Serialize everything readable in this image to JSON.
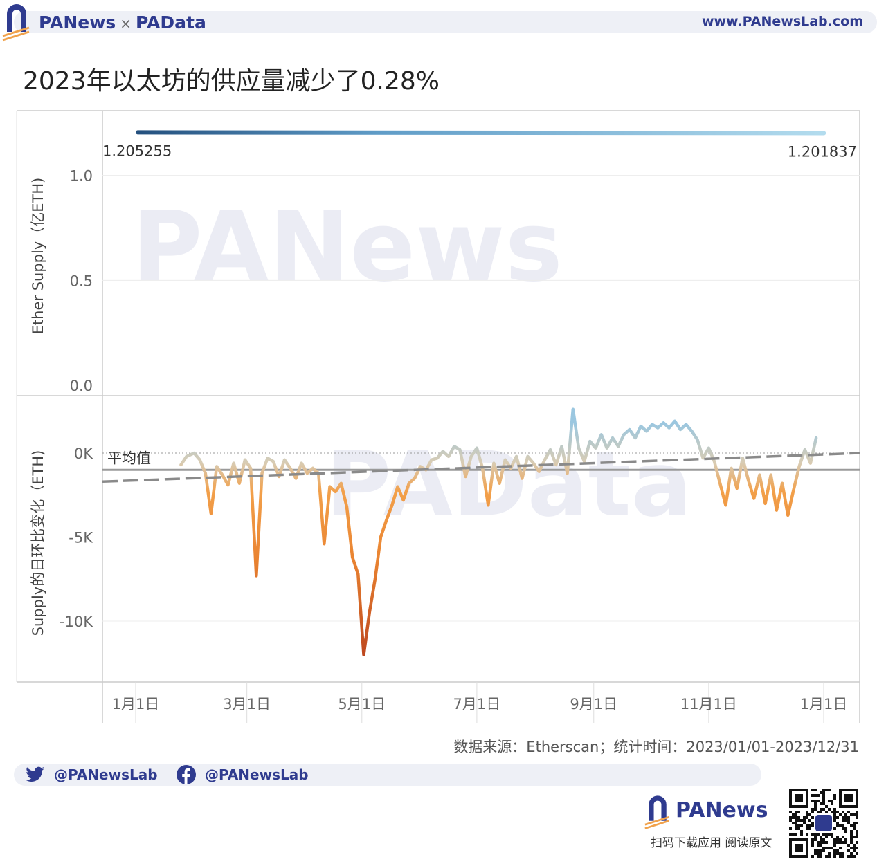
{
  "header": {
    "brand_left": "PANews",
    "brand_sep": "×",
    "brand_right": "PAData",
    "site": "www.PANewsLab.com"
  },
  "title": "2023年以太坊的供应量减少了0.28%",
  "colors": {
    "brand_blue": "#2f3b8f",
    "brand_orange": "#f0a14a",
    "gradient_dark": "#24507e",
    "gradient_light": "#b3dcee",
    "line_neg_strong": "#c0451d",
    "line_neg": "#f2a04a",
    "line_pos": "#9bc7e0"
  },
  "chart_data": [
    {
      "type": "line",
      "ylabel": "Ether Supply（亿ETH)",
      "ylim": [
        0,
        1.2
      ],
      "yticks": [
        "1.0",
        "0.5",
        "0.0"
      ],
      "start_label": "1.205255",
      "end_label": "1.201837",
      "x": [
        "2023-01-01",
        "2023-12-31"
      ],
      "values": [
        1.205255,
        1.201837
      ],
      "grid": true
    },
    {
      "type": "line",
      "ylabel": "Supply的日环比变化（ETH)",
      "ylim": [
        -13000,
        4000
      ],
      "yticks": [
        "0K",
        "-5K",
        "-10K"
      ],
      "xticks": [
        "1月1日",
        "3月1日",
        "5月1日",
        "7月1日",
        "9月1日",
        "11月1日",
        "1月1日"
      ],
      "average_label": "平均值",
      "average": -1000,
      "trend_start": -1700,
      "trend_end": 0,
      "series": [
        {
          "points": [
            [
              "2023-01-25",
              -700
            ],
            [
              "2023-01-28",
              -200
            ],
            [
              "2023-02-01",
              0
            ],
            [
              "2023-02-04",
              -400
            ],
            [
              "2023-02-07",
              -1200
            ],
            [
              "2023-02-10",
              -3600
            ],
            [
              "2023-02-13",
              -800
            ],
            [
              "2023-02-16",
              -1300
            ],
            [
              "2023-02-19",
              -1900
            ],
            [
              "2023-02-22",
              -600
            ],
            [
              "2023-02-25",
              -1800
            ],
            [
              "2023-02-28",
              -400
            ],
            [
              "2023-03-03",
              -900
            ],
            [
              "2023-03-06",
              -7300
            ],
            [
              "2023-03-09",
              -1200
            ],
            [
              "2023-03-12",
              -300
            ],
            [
              "2023-03-15",
              -500
            ],
            [
              "2023-03-18",
              -1400
            ],
            [
              "2023-03-21",
              -400
            ],
            [
              "2023-03-24",
              -900
            ],
            [
              "2023-03-27",
              -1500
            ],
            [
              "2023-03-30",
              -600
            ],
            [
              "2023-04-02",
              -1200
            ],
            [
              "2023-04-05",
              -900
            ],
            [
              "2023-04-08",
              -1200
            ],
            [
              "2023-04-11",
              -5400
            ],
            [
              "2023-04-14",
              -2000
            ],
            [
              "2023-04-17",
              -2300
            ],
            [
              "2023-04-20",
              -1800
            ],
            [
              "2023-04-23",
              -3200
            ],
            [
              "2023-04-26",
              -6200
            ],
            [
              "2023-04-29",
              -7200
            ],
            [
              "2023-05-02",
              -12000
            ],
            [
              "2023-05-05",
              -9500
            ],
            [
              "2023-05-08",
              -7500
            ],
            [
              "2023-05-11",
              -5000
            ],
            [
              "2023-05-14",
              -4000
            ],
            [
              "2023-05-17",
              -3100
            ],
            [
              "2023-05-20",
              -2000
            ],
            [
              "2023-05-23",
              -2800
            ],
            [
              "2023-05-26",
              -1800
            ],
            [
              "2023-05-29",
              -1500
            ],
            [
              "2023-06-01",
              -800
            ],
            [
              "2023-06-04",
              -1000
            ],
            [
              "2023-06-07",
              -400
            ],
            [
              "2023-06-10",
              -300
            ],
            [
              "2023-06-13",
              100
            ],
            [
              "2023-06-16",
              -200
            ],
            [
              "2023-06-19",
              400
            ],
            [
              "2023-06-22",
              200
            ],
            [
              "2023-06-25",
              -1400
            ],
            [
              "2023-06-28",
              -200
            ],
            [
              "2023-07-01",
              300
            ],
            [
              "2023-07-04",
              -900
            ],
            [
              "2023-07-07",
              -3100
            ],
            [
              "2023-07-10",
              -600
            ],
            [
              "2023-07-13",
              -1800
            ],
            [
              "2023-07-16",
              -400
            ],
            [
              "2023-07-19",
              -900
            ],
            [
              "2023-07-22",
              -200
            ],
            [
              "2023-07-25",
              -1500
            ],
            [
              "2023-07-28",
              -200
            ],
            [
              "2023-07-31",
              -600
            ],
            [
              "2023-08-03",
              -1100
            ],
            [
              "2023-08-06",
              -400
            ],
            [
              "2023-08-09",
              200
            ],
            [
              "2023-08-12",
              -700
            ],
            [
              "2023-08-15",
              400
            ],
            [
              "2023-08-18",
              -1200
            ],
            [
              "2023-08-21",
              2600
            ],
            [
              "2023-08-24",
              300
            ],
            [
              "2023-08-27",
              -500
            ],
            [
              "2023-08-30",
              700
            ],
            [
              "2023-09-02",
              300
            ],
            [
              "2023-09-05",
              1100
            ],
            [
              "2023-09-08",
              300
            ],
            [
              "2023-09-11",
              900
            ],
            [
              "2023-09-14",
              400
            ],
            [
              "2023-09-17",
              1100
            ],
            [
              "2023-09-20",
              1400
            ],
            [
              "2023-09-23",
              900
            ],
            [
              "2023-09-26",
              1600
            ],
            [
              "2023-09-29",
              1300
            ],
            [
              "2023-10-02",
              1700
            ],
            [
              "2023-10-05",
              1500
            ],
            [
              "2023-10-08",
              1800
            ],
            [
              "2023-10-11",
              1500
            ],
            [
              "2023-10-14",
              1900
            ],
            [
              "2023-10-17",
              1400
            ],
            [
              "2023-10-20",
              1700
            ],
            [
              "2023-10-23",
              1300
            ],
            [
              "2023-10-26",
              800
            ],
            [
              "2023-10-29",
              -300
            ],
            [
              "2023-11-01",
              300
            ],
            [
              "2023-11-04",
              -500
            ],
            [
              "2023-11-07",
              -1800
            ],
            [
              "2023-11-10",
              -3100
            ],
            [
              "2023-11-13",
              -900
            ],
            [
              "2023-11-16",
              -2100
            ],
            [
              "2023-11-19",
              -300
            ],
            [
              "2023-11-22",
              -1600
            ],
            [
              "2023-11-25",
              -2700
            ],
            [
              "2023-11-28",
              -1300
            ],
            [
              "2023-12-01",
              -3000
            ],
            [
              "2023-12-04",
              -1300
            ],
            [
              "2023-12-07",
              -3400
            ],
            [
              "2023-12-10",
              -1800
            ],
            [
              "2023-12-13",
              -3700
            ],
            [
              "2023-12-16",
              -2200
            ],
            [
              "2023-12-19",
              -800
            ],
            [
              "2023-12-22",
              200
            ],
            [
              "2023-12-25",
              -600
            ],
            [
              "2023-12-28",
              900
            ]
          ]
        }
      ],
      "grid": true
    }
  ],
  "source": "数据来源：Etherscan；统计时间：2023/01/01-2023/12/31",
  "social": {
    "twitter": "@PANewsLab",
    "facebook": "@PANewsLab"
  },
  "footer": {
    "brand": "PANews",
    "caption": "扫码下载应用  阅读原文"
  }
}
